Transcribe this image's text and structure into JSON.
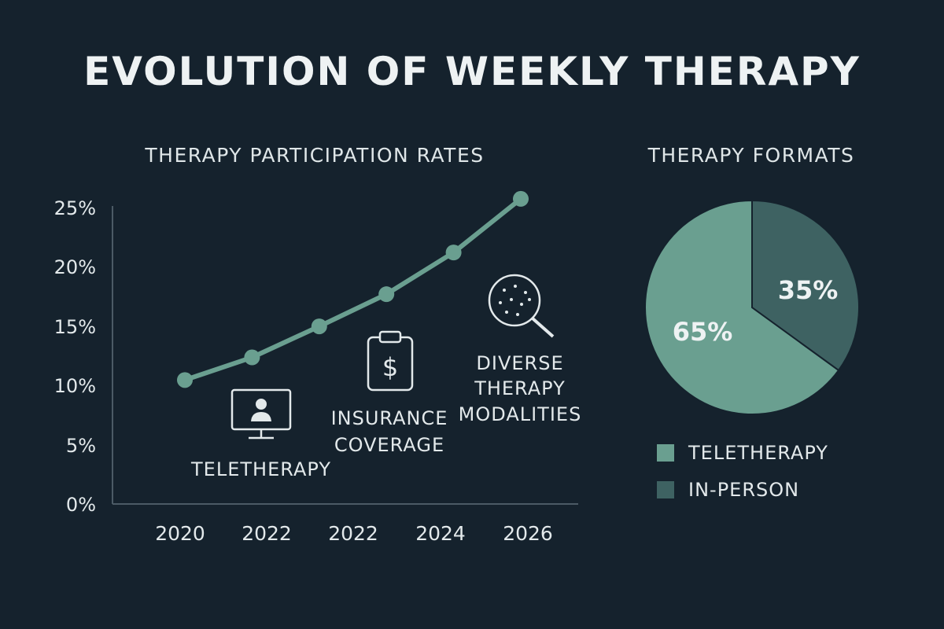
{
  "title": "EVOLUTION OF WEEKLY THERAPY",
  "colors": {
    "background": "#15222d",
    "line": "#6a9f90",
    "teletherapy": "#6a9f90",
    "in_person": "#3e6262",
    "icon_stroke": "#e3e9eb"
  },
  "chart_data": [
    {
      "type": "line",
      "title": "THERAPY PARTICIPATION RATES",
      "x_tick_labels": [
        "2020",
        "2022",
        "2022",
        "2024",
        "2026"
      ],
      "y_tick_labels": [
        "0%",
        "5%",
        "10%",
        "15%",
        "20%",
        "25%"
      ],
      "ylim": [
        0,
        25
      ],
      "series": [
        {
          "values": [
            10.4,
            12.3,
            14.9,
            17.6,
            21.1,
            25.6
          ]
        }
      ],
      "annotations": [
        {
          "icon": "monitor-person-icon",
          "lines": [
            "TELETHERAPY"
          ]
        },
        {
          "icon": "clipboard-dollar-icon",
          "lines": [
            "INSURANCE",
            "COVERAGE"
          ]
        },
        {
          "icon": "magnifier-icon",
          "lines": [
            "DIVERSE",
            "THERAPY",
            "MODALITIES"
          ]
        }
      ],
      "grid": false
    },
    {
      "type": "pie",
      "title": "THERAPY FORMATS",
      "slices": [
        {
          "label": "TELETHERAPY",
          "value": 65,
          "display": "65%"
        },
        {
          "label": "IN-PERSON",
          "value": 35,
          "display": "35%"
        }
      ],
      "legend_position": "bottom"
    }
  ]
}
